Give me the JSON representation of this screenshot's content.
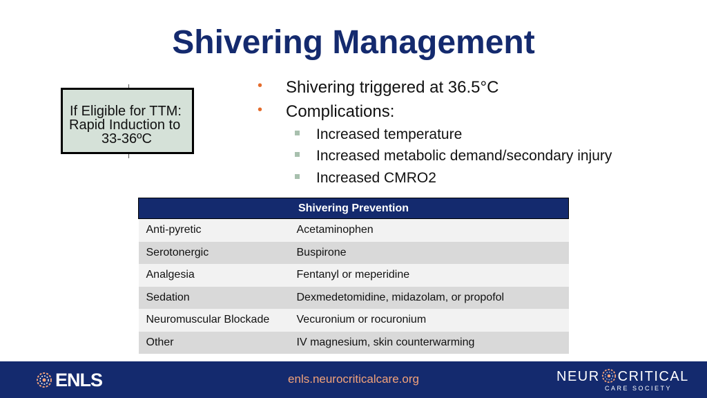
{
  "title": "Shivering Management",
  "ttm_box": {
    "lines": [
      "If Eligible for TTM:",
      "Rapid Induction to",
      "33-36ºC"
    ]
  },
  "bullets": [
    {
      "text": "Shivering triggered at 36.5°C",
      "subitems": []
    },
    {
      "text": "Complications:",
      "subitems": [
        "Increased temperature",
        "Increased metabolic demand/secondary injury",
        "Increased CMRO2"
      ]
    }
  ],
  "table": {
    "header": "Shivering Prevention",
    "rows": [
      {
        "category": "Anti-pyretic",
        "treatment": "Acetaminophen"
      },
      {
        "category": "Serotonergic",
        "treatment": "Buspirone"
      },
      {
        "category": "Analgesia",
        "treatment": "Fentanyl or meperidine"
      },
      {
        "category": "Sedation",
        "treatment": "Dexmedetomidine, midazolam, or propofol"
      },
      {
        "category": "Neuromuscular Blockade",
        "treatment": "Vecuronium or rocuronium"
      },
      {
        "category": "Other",
        "treatment": "IV magnesium, skin counterwarming"
      }
    ]
  },
  "footer": {
    "left_logo": "ENLS",
    "url": "enls.neurocriticalcare.org",
    "right_logo_left": "NEUR",
    "right_logo_right": "CRITICAL",
    "right_logo_sub": "CARE SOCIETY",
    "brain_icon": "brain-icon",
    "colors": {
      "navy": "#142a6e",
      "accent": "#e46c2c",
      "url": "#f2a27a"
    }
  }
}
